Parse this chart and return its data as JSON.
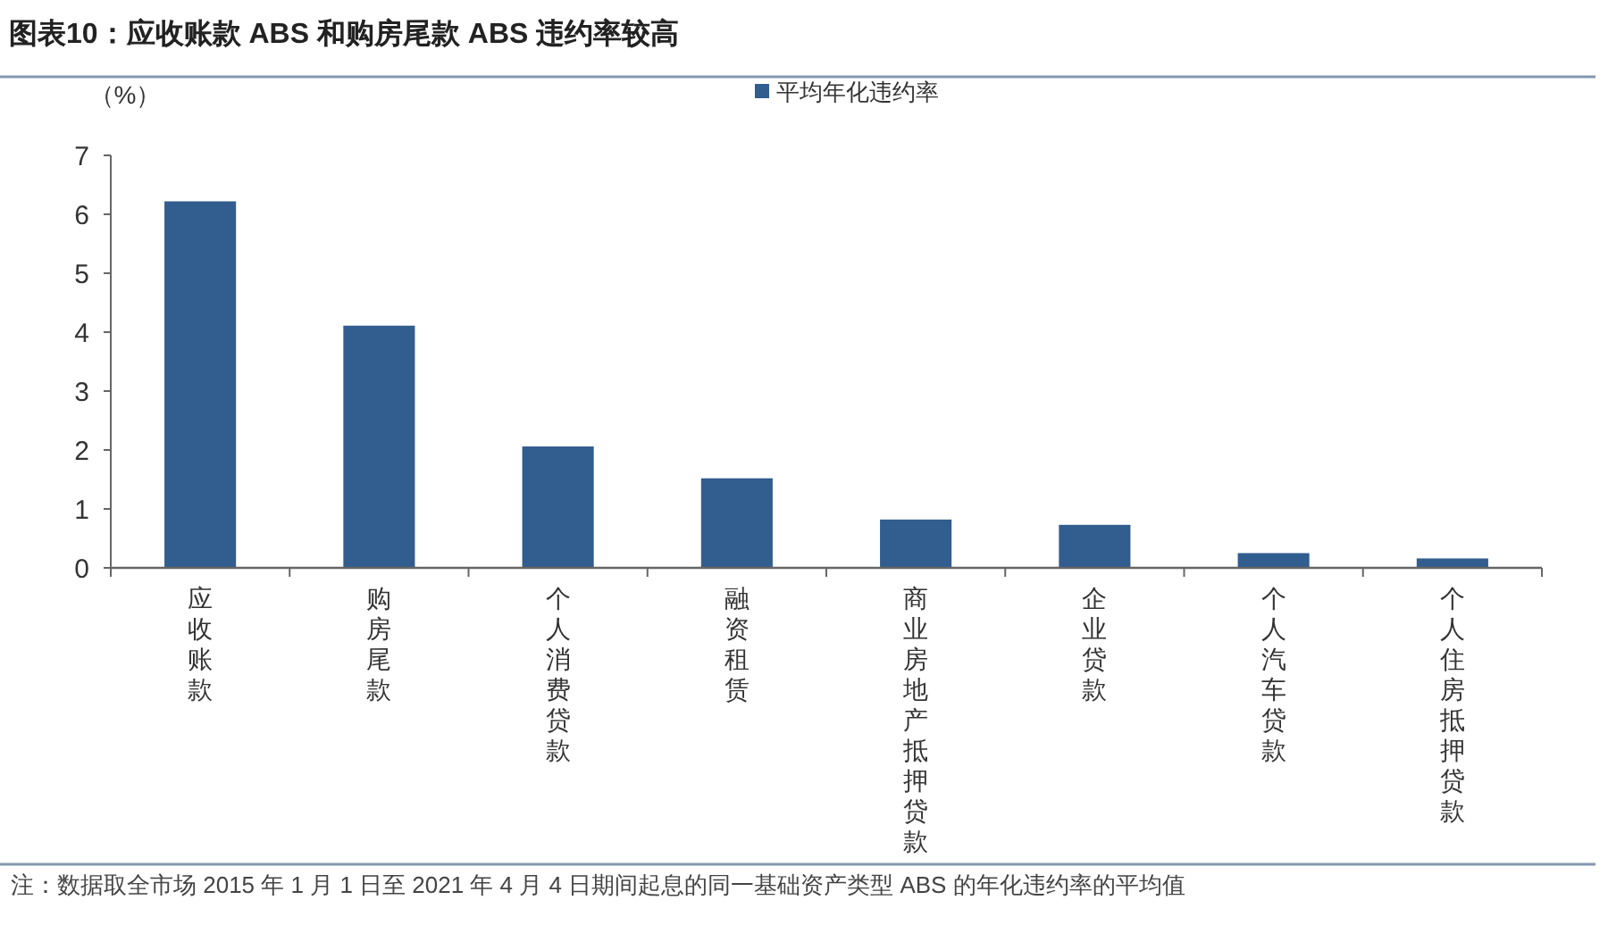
{
  "chart_data": {
    "type": "bar",
    "title": "图表10：应收账款 ABS 和购房尾款 ABS 违约率较高",
    "ylabel": "（%）",
    "categories": [
      "应收账款",
      "购房尾款",
      "个人消费贷款",
      "融资租赁",
      "商业房地产抵押贷款",
      "企业贷款",
      "个人汽车贷款",
      "个人住房抵押贷款"
    ],
    "series": [
      {
        "name": "平均年化违约率",
        "color": "#325d8f",
        "values": [
          6.22,
          4.11,
          2.06,
          1.52,
          0.82,
          0.73,
          0.25,
          0.16
        ]
      }
    ],
    "ylim": [
      0,
      7
    ],
    "yticks": [
      0,
      1,
      2,
      3,
      4,
      5,
      6,
      7
    ],
    "legend": "top",
    "annotations": [
      "注：数据取全市场 2015 年 1 月 1 日至 2021 年 4 月 4 日期间起息的同一基础资产类型 ABS 的年化违约率的平均值"
    ]
  }
}
